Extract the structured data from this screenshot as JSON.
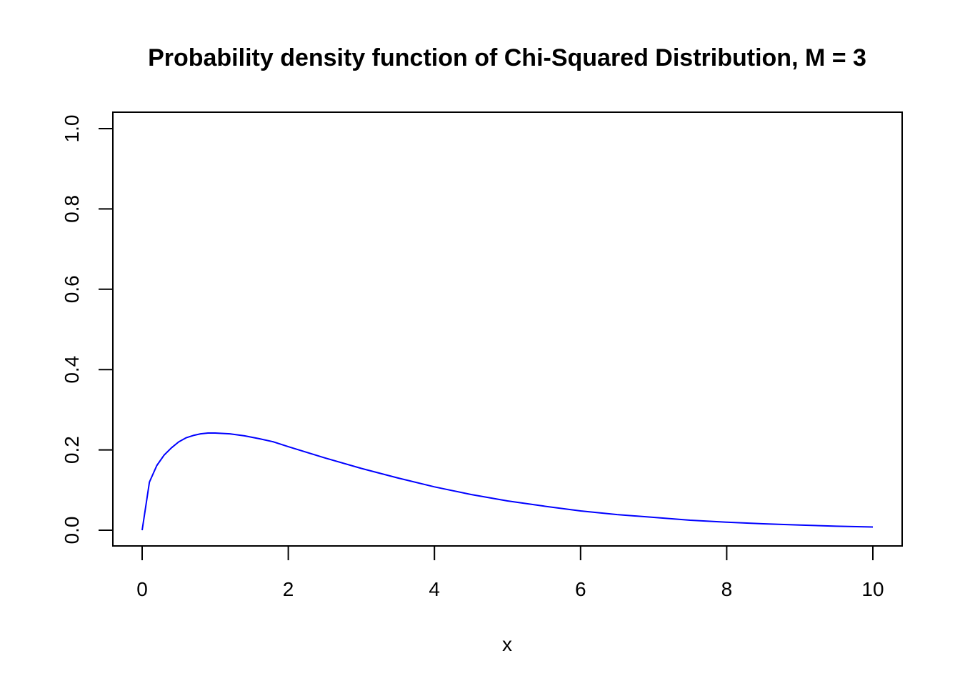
{
  "chart_data": {
    "type": "line",
    "title": "Probability density function of Chi-Squared Distribution, M = 3",
    "xlabel": "x",
    "ylabel": "",
    "xlim": [
      0,
      10
    ],
    "ylim": [
      0,
      1
    ],
    "x_ticks": [
      0,
      2,
      4,
      6,
      8,
      10
    ],
    "x_tick_labels": [
      "0",
      "2",
      "4",
      "6",
      "8",
      "10"
    ],
    "y_ticks": [
      0,
      0.2,
      0.4,
      0.6,
      0.8,
      1.0
    ],
    "y_tick_labels": [
      "0.0",
      "0.2",
      "0.4",
      "0.6",
      "0.8",
      "1.0"
    ],
    "grid": false,
    "series": [
      {
        "color": "#0000ff",
        "x": [
          0,
          0.1,
          0.2,
          0.3,
          0.4,
          0.5,
          0.6,
          0.7,
          0.8,
          0.9,
          1.0,
          1.2,
          1.4,
          1.6,
          1.8,
          2.0,
          2.5,
          3.0,
          3.5,
          4.0,
          4.5,
          5.0,
          5.5,
          6.0,
          6.5,
          7.0,
          7.5,
          8.0,
          8.5,
          9.0,
          9.5,
          10.0
        ],
        "y": [
          0,
          0.12,
          0.161,
          0.187,
          0.205,
          0.22,
          0.23,
          0.236,
          0.24,
          0.242,
          0.242,
          0.24,
          0.235,
          0.228,
          0.22,
          0.208,
          0.18,
          0.154,
          0.13,
          0.108,
          0.089,
          0.073,
          0.06,
          0.048,
          0.039,
          0.032,
          0.025,
          0.02,
          0.016,
          0.013,
          0.01,
          0.008
        ]
      }
    ]
  }
}
